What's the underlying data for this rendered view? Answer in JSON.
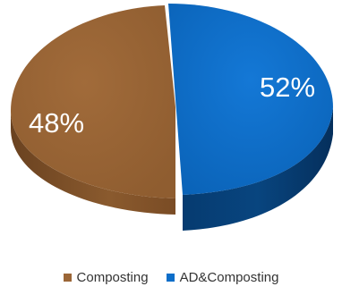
{
  "chart_data": {
    "type": "pie",
    "style": "3d",
    "title": "",
    "labels": [
      "Composting",
      "AD&Composting"
    ],
    "values": [
      48,
      52
    ],
    "data_labels": [
      "48%",
      "52%"
    ],
    "colors": [
      "#9b6637",
      "#0d6ec9"
    ],
    "legend_position": "bottom"
  }
}
